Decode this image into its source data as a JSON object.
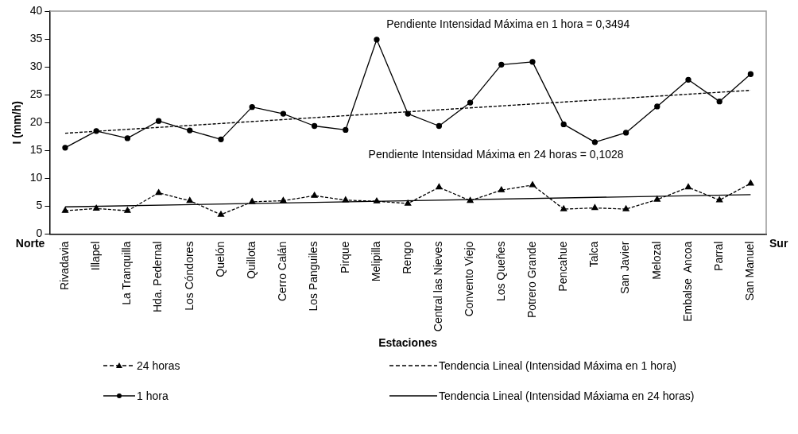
{
  "chart_data": {
    "type": "line",
    "xlabel": "Estaciones",
    "ylabel": "I (mm/h)",
    "categories": [
      "Rivadavia",
      "Illapel",
      "La Tranquilla",
      "Hda. Pedernal",
      "Los Cóndores",
      "Quelón",
      "Quillota",
      "Cerro Calán",
      "Los Panguiles",
      "Pirque",
      "Melipilla",
      "Rengo",
      "Central las Nieves",
      "Convento Viejo",
      "Los Queñes",
      "Potrero Grande",
      "Pencahue",
      "Talca",
      "San Javier",
      "Melozal",
      "Embalse  Ancoa",
      "Parral",
      "San Manuel"
    ],
    "series": [
      {
        "name": "24 horas",
        "color": "#000000",
        "marker": "triangle",
        "line_style": "dashed",
        "values": [
          4.2,
          4.6,
          4.2,
          7.4,
          6.0,
          3.5,
          5.8,
          6.0,
          6.9,
          6.1,
          5.9,
          5.5,
          8.4,
          6.0,
          7.9,
          8.8,
          4.5,
          4.7,
          4.5,
          6.2,
          8.4,
          6.1,
          9.1
        ]
      },
      {
        "name": "1 hora",
        "color": "#000000",
        "marker": "circle",
        "line_style": "solid",
        "values": [
          15.5,
          18.5,
          17.2,
          20.3,
          18.6,
          17.0,
          22.8,
          21.6,
          19.4,
          18.7,
          34.9,
          21.6,
          19.4,
          23.6,
          30.4,
          30.9,
          19.7,
          16.5,
          18.2,
          22.9,
          27.7,
          23.8,
          28.7
        ]
      },
      {
        "name": "Tendencia Lineal (Intensidad Máxima en 1 hora)",
        "color": "#000000",
        "marker": "none",
        "line_style": "dashed",
        "x": [
          "Rivadavia",
          "San Manuel"
        ],
        "values": [
          18.1,
          25.8
        ]
      },
      {
        "name": "Tendencia Lineal (Intensidad Máxiama en 24 horas)",
        "color": "#000000",
        "marker": "none",
        "line_style": "solid",
        "x": [
          "Rivadavia",
          "San Manuel"
        ],
        "values": [
          4.9,
          7.1
        ]
      }
    ],
    "ylim": [
      0,
      40
    ],
    "yticks": [
      0,
      5,
      10,
      15,
      20,
      25,
      30,
      35,
      40
    ],
    "grid": false,
    "legend": "bottom",
    "annotations": [
      "Pendiente Intensidad Máxima en 1 hora = 0,3494",
      "Pendiente Intensidad Máxima en 24 horas = 0,1028",
      "Norte",
      "Sur"
    ]
  }
}
